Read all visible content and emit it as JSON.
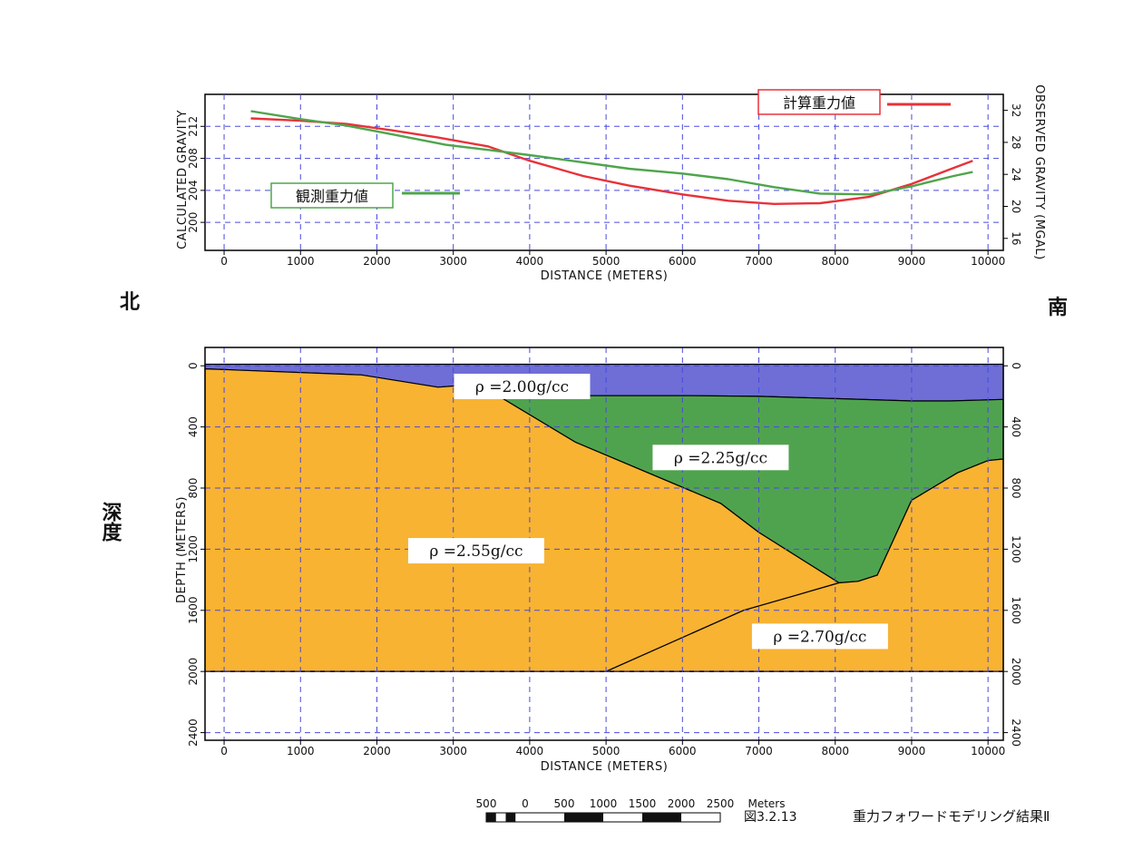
{
  "direction": {
    "north": "北",
    "south": "南",
    "depth_side": "深度"
  },
  "footer": {
    "scale_labels": [
      "500",
      "0",
      "500",
      "1000",
      "1500",
      "2000",
      "2500"
    ],
    "scale_unit": "Meters",
    "figure_number": "図3.2.13",
    "figure_title": "重力フォワードモデリング結果Ⅱ"
  },
  "chart_data": [
    {
      "type": "line",
      "xlabel": "DISTANCE (METERS)",
      "ylabel_left": "CALCULATED GRAVITY",
      "ylabel_right": "OBSERVED GRAVITY (MGAL)",
      "xlim": [
        -250,
        10200
      ],
      "xticks": [
        0,
        1000,
        2000,
        3000,
        4000,
        5000,
        6000,
        7000,
        8000,
        9000,
        10000
      ],
      "ylim_left": [
        196.5,
        216
      ],
      "yticks_left": [
        200,
        204,
        208,
        212
      ],
      "ylim_right": [
        14.5,
        34
      ],
      "yticks_right": [
        16,
        20,
        24,
        28,
        32
      ],
      "grid": true,
      "series": [
        {
          "name": "計算重力値",
          "axis": "left",
          "color": "#e8323a",
          "x": [
            350,
            1000,
            1600,
            2200,
            2800,
            3450,
            4000,
            4700,
            5300,
            6000,
            6600,
            7200,
            7800,
            8450,
            9000,
            9550,
            9800
          ],
          "y": [
            213.0,
            212.7,
            212.3,
            211.5,
            210.6,
            209.5,
            207.7,
            205.8,
            204.6,
            203.5,
            202.7,
            202.3,
            202.4,
            203.2,
            204.8,
            206.8,
            207.7
          ]
        },
        {
          "name": "観測重力値",
          "axis": "right",
          "color": "#4fa54c",
          "x": [
            350,
            1000,
            1600,
            2200,
            2900,
            3500,
            4000,
            4700,
            5300,
            6000,
            6600,
            7200,
            7800,
            8450,
            9000,
            9550,
            9800
          ],
          "y": [
            31.9,
            30.9,
            30.1,
            29.0,
            27.7,
            27.0,
            26.4,
            25.5,
            24.7,
            24.1,
            23.4,
            22.4,
            21.6,
            21.5,
            22.5,
            23.8,
            24.3
          ]
        }
      ]
    },
    {
      "type": "area",
      "xlabel": "DISTANCE (METERS)",
      "ylabel": "DEPTH (METERS)",
      "xlim": [
        -250,
        10200
      ],
      "xticks": [
        0,
        1000,
        2000,
        3000,
        4000,
        5000,
        6000,
        7000,
        8000,
        9000,
        10000
      ],
      "ylim": [
        -120,
        2450
      ],
      "yticks": [
        0,
        400,
        800,
        1200,
        1600,
        2000,
        2400
      ],
      "grid": true,
      "layers": [
        {
          "label": "ρ =2.00g/cc",
          "color": "#6e6ed6",
          "boundary": [
            [
              -250,
              -10
            ],
            [
              10200,
              -10
            ],
            [
              10200,
              220
            ],
            [
              9500,
              230
            ],
            [
              9000,
              230
            ],
            [
              8000,
              215
            ],
            [
              7000,
              200
            ],
            [
              6000,
              195
            ],
            [
              4100,
              195
            ],
            [
              3500,
              170
            ],
            [
              3200,
              125
            ],
            [
              2800,
              140
            ],
            [
              1800,
              60
            ],
            [
              0,
              25
            ],
            [
              -250,
              20
            ]
          ]
        },
        {
          "label": "ρ =2.25g/cc",
          "color": "#50a34e",
          "boundary": [
            [
              3500,
              170
            ],
            [
              4100,
              195
            ],
            [
              6000,
              195
            ],
            [
              7000,
              200
            ],
            [
              8000,
              215
            ],
            [
              9000,
              230
            ],
            [
              9500,
              230
            ],
            [
              10200,
              220
            ],
            [
              10200,
              610
            ],
            [
              10000,
              620
            ],
            [
              9600,
              700
            ],
            [
              9000,
              880
            ],
            [
              8550,
              1370
            ],
            [
              8300,
              1410
            ],
            [
              8050,
              1420
            ],
            [
              7000,
              1090
            ],
            [
              6500,
              900
            ],
            [
              4600,
              500
            ]
          ]
        },
        {
          "label": "ρ =2.55g/cc",
          "color": "#f8b332",
          "boundary": [
            [
              -250,
              20
            ],
            [
              0,
              25
            ],
            [
              1800,
              60
            ],
            [
              2800,
              140
            ],
            [
              3200,
              125
            ],
            [
              3500,
              170
            ],
            [
              4600,
              500
            ],
            [
              6500,
              900
            ],
            [
              7000,
              1090
            ],
            [
              8050,
              1420
            ],
            [
              7500,
              1500
            ],
            [
              6800,
              1600
            ],
            [
              5000,
              2000
            ],
            [
              -250,
              2000
            ]
          ]
        },
        {
          "label": "ρ =2.70g/cc",
          "color": "#f8b332",
          "boundary": [
            [
              5000,
              2000
            ],
            [
              6800,
              1600
            ],
            [
              7500,
              1500
            ],
            [
              8050,
              1420
            ],
            [
              8300,
              1410
            ],
            [
              8550,
              1370
            ],
            [
              9000,
              880
            ],
            [
              9600,
              700
            ],
            [
              10000,
              620
            ],
            [
              10200,
              610
            ],
            [
              10200,
              2000
            ]
          ]
        }
      ]
    }
  ],
  "colors": {
    "axis": "#000000",
    "grid": "#4a4adb",
    "label_box_border_red": "#e8323a",
    "label_box_border_green": "#4fa54c"
  }
}
